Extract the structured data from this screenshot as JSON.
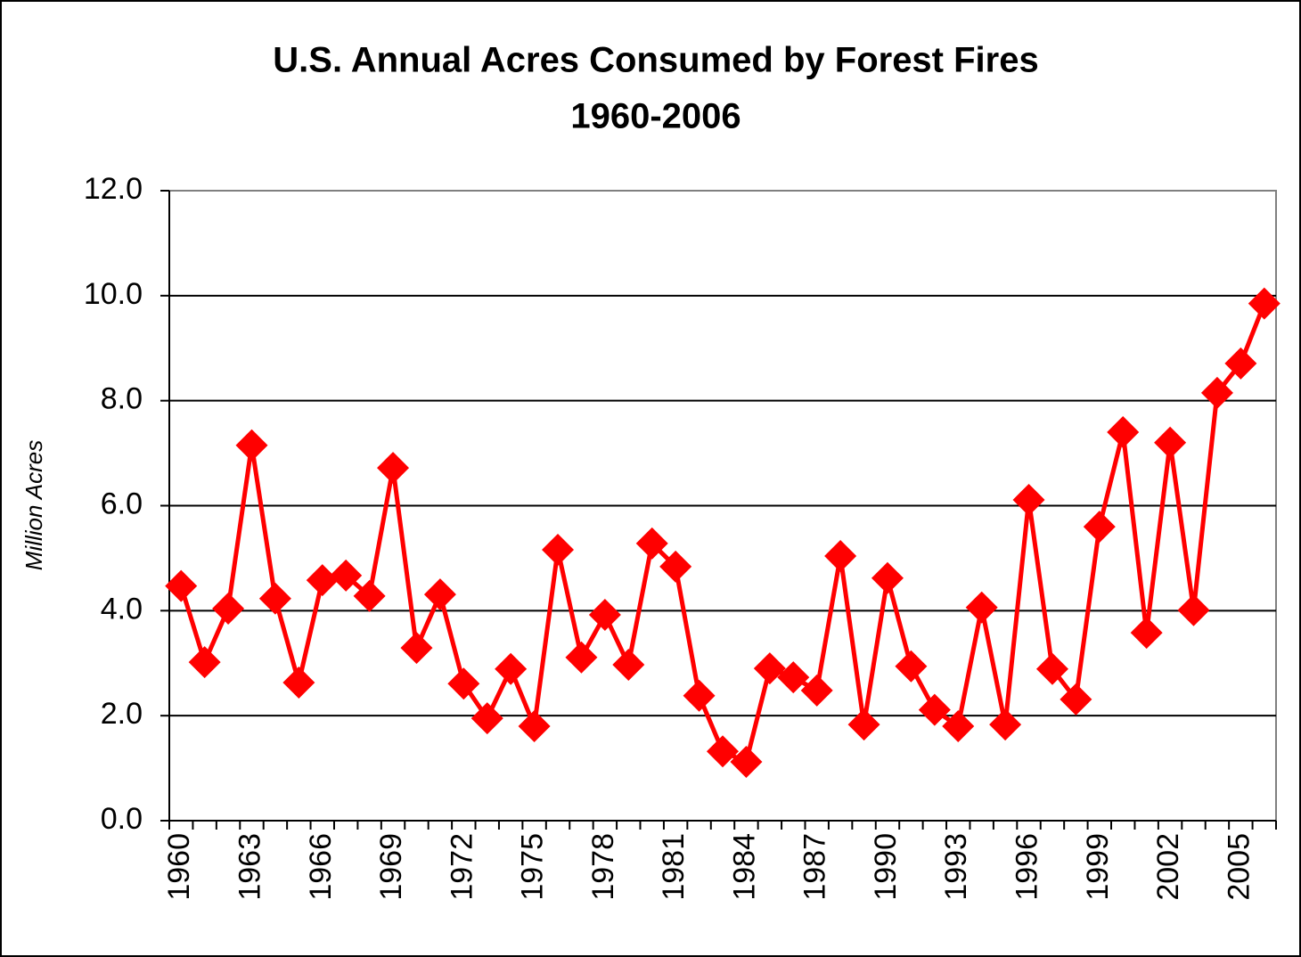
{
  "chart_data": {
    "type": "line",
    "title": "U.S. Annual Acres Consumed by Forest Fires",
    "subtitle": "1960-2006",
    "y_label": "Million Acres",
    "categories": [
      "1960",
      null,
      null,
      "1963",
      null,
      null,
      "1966",
      null,
      null,
      "1969",
      null,
      null,
      "1972",
      null,
      null,
      "1975",
      null,
      null,
      "1978",
      null,
      null,
      "1981",
      null,
      null,
      "1984",
      null,
      null,
      "1987",
      null,
      null,
      "1990",
      null,
      null,
      "1993",
      null,
      null,
      "1996",
      null,
      null,
      "1999",
      null,
      null,
      "2002",
      null,
      null,
      "2005",
      null
    ],
    "values": [
      4.47,
      3.02,
      4.04,
      7.15,
      4.23,
      2.63,
      4.58,
      4.67,
      4.28,
      6.72,
      3.29,
      4.31,
      2.61,
      1.95,
      2.89,
      1.8,
      5.16,
      3.11,
      3.92,
      2.97,
      5.28,
      4.84,
      2.38,
      1.32,
      1.12,
      2.9,
      2.73,
      2.48,
      5.04,
      1.83,
      4.62,
      2.94,
      2.11,
      1.8,
      4.06,
      1.83,
      6.11,
      2.89,
      2.31,
      5.6,
      7.4,
      3.58,
      7.2,
      4.01,
      8.15,
      8.71,
      9.85
    ],
    "color": "#ff0000",
    "ylim": [
      0,
      12
    ],
    "yticks": [
      {
        "value": 0,
        "label": "0.0"
      },
      {
        "value": 2,
        "label": "2.0"
      },
      {
        "value": 4,
        "label": "4.0"
      },
      {
        "value": 6,
        "label": "6.0"
      },
      {
        "value": 8,
        "label": "8.0"
      },
      {
        "value": 10,
        "label": "10.0"
      },
      {
        "value": 12,
        "label": "12.0"
      }
    ],
    "grid": true
  }
}
